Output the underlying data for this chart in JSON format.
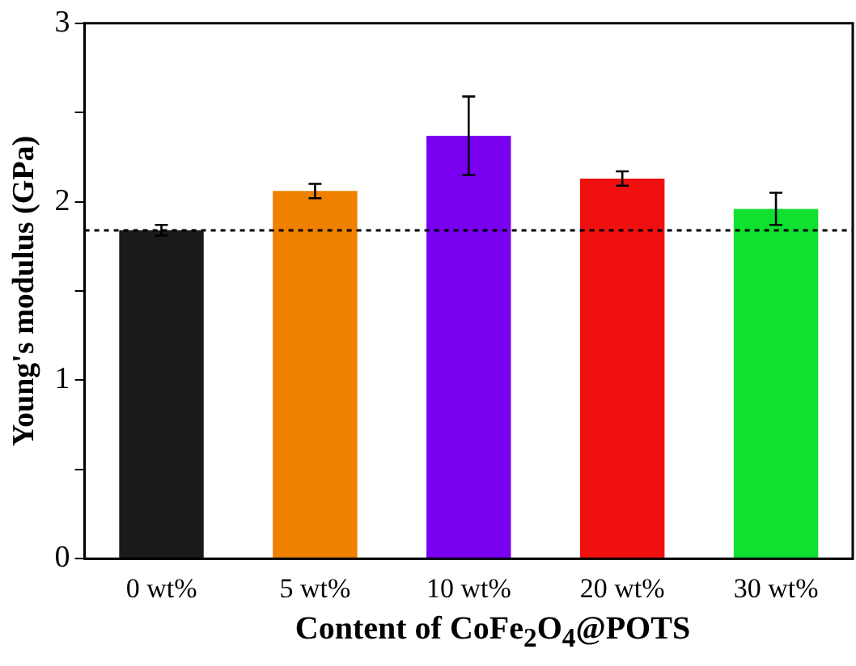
{
  "chart_data": {
    "type": "bar",
    "xlabel": "Content of CoFe$_{2}$O$_{4}$@POTS",
    "ylabel": "Young's modulus (GPa)",
    "categories": [
      "0 wt%",
      "5 wt%",
      "10 wt%",
      "20 wt%",
      "30 wt%"
    ],
    "values": [
      1.84,
      2.06,
      2.37,
      2.13,
      1.96
    ],
    "colors": [
      "#1a1a1a",
      "#f08000",
      "#7a00f0",
      "#f01010",
      "#10e030"
    ],
    "errors": [
      0.03,
      0.04,
      0.22,
      0.04,
      0.09
    ],
    "ylim": [
      0,
      3
    ],
    "yticks": [
      0,
      {
        "value": 0.5,
        "label": null
      },
      1,
      {
        "value": 1.5,
        "label": null
      },
      2,
      {
        "value": 2.5,
        "label": null
      },
      3
    ],
    "ref_lines": [
      {
        "axis": "y",
        "value": 1.84,
        "line_style": "dashed",
        "color": "#000000"
      }
    ],
    "grid": false,
    "legend": false
  }
}
